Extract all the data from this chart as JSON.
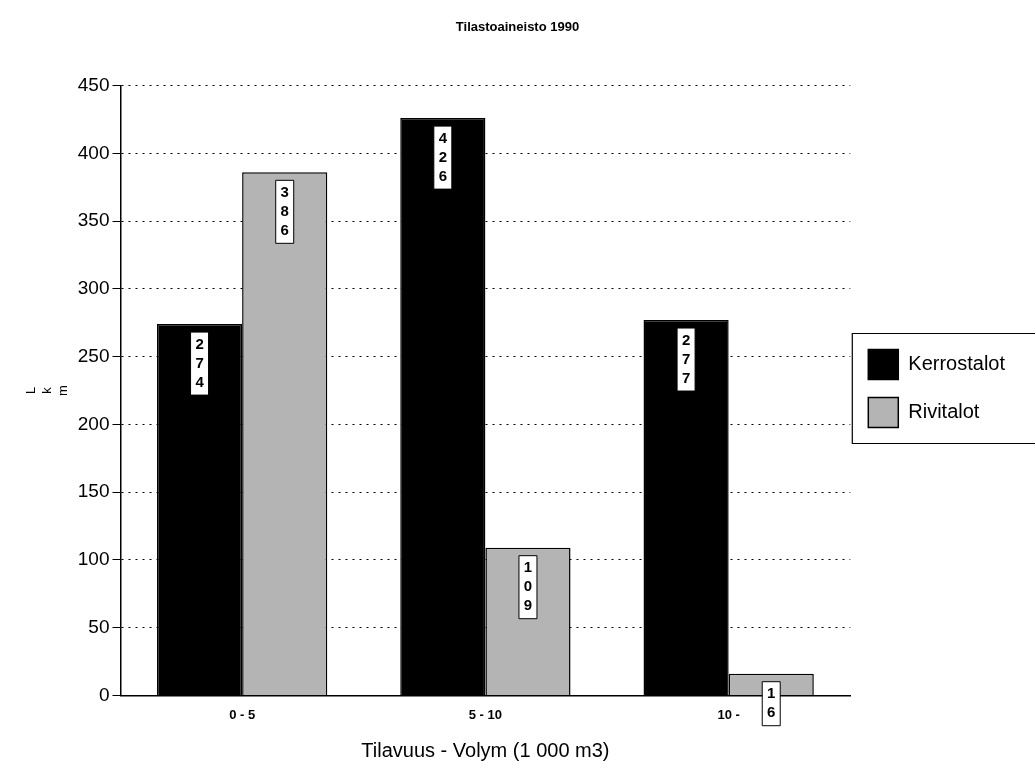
{
  "chart_data": {
    "type": "bar",
    "title": "Tilastoaineisto 1990",
    "xlabel": "Tilavuus - Volym (1 000 m3)",
    "ylabel": "Lkm",
    "categories": [
      "0 - 5",
      "5 - 10",
      "10 -"
    ],
    "series": [
      {
        "name": "Kerrostalot",
        "color": "#000000",
        "values": [
          274,
          426,
          277
        ]
      },
      {
        "name": "Rivitalot",
        "color": "#b4b4b4",
        "values": [
          386,
          109,
          16
        ]
      }
    ],
    "ylim": [
      0,
      450
    ],
    "yticks": [
      0,
      50,
      100,
      150,
      200,
      250,
      300,
      350,
      400,
      450
    ],
    "grid": "y",
    "legend": "right",
    "data_labels": true
  }
}
